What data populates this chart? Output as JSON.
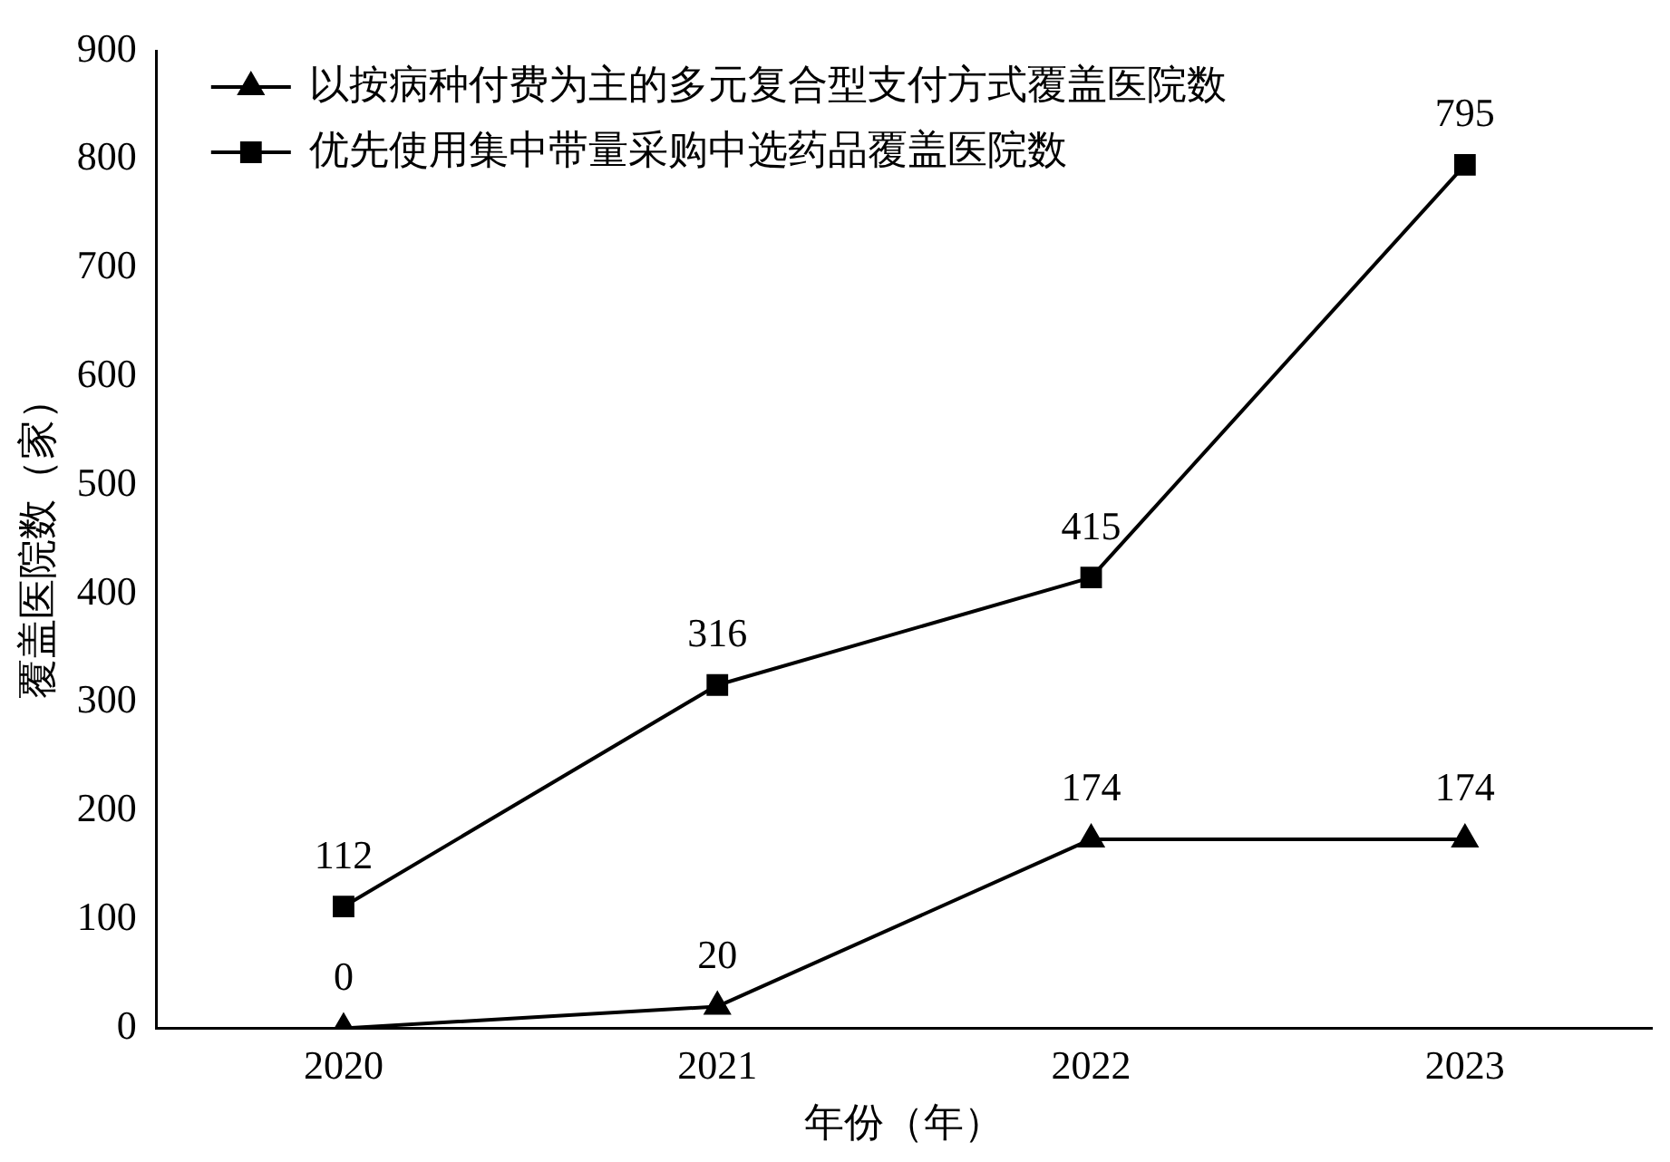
{
  "chart_data": {
    "type": "line",
    "xlabel": "年份（年）",
    "ylabel": "覆盖医院数（家）",
    "categories": [
      "2020",
      "2021",
      "2022",
      "2023"
    ],
    "series": [
      {
        "name": "以按病种付费为主的多元复合型支付方式覆盖医院数",
        "color": "#000000",
        "marker": "triangle",
        "values": [
          0,
          20,
          174,
          174
        ]
      },
      {
        "name": "优先使用集中带量采购中选药品覆盖医院数",
        "color": "#000000",
        "marker": "square",
        "values": [
          112,
          316,
          415,
          795
        ]
      }
    ],
    "ylim": [
      0,
      900
    ],
    "yticks": [
      0,
      100,
      200,
      300,
      400,
      500,
      600,
      700,
      800,
      900
    ],
    "grid": false,
    "legend": "top left",
    "data_labels": true,
    "line_style": "solid"
  }
}
